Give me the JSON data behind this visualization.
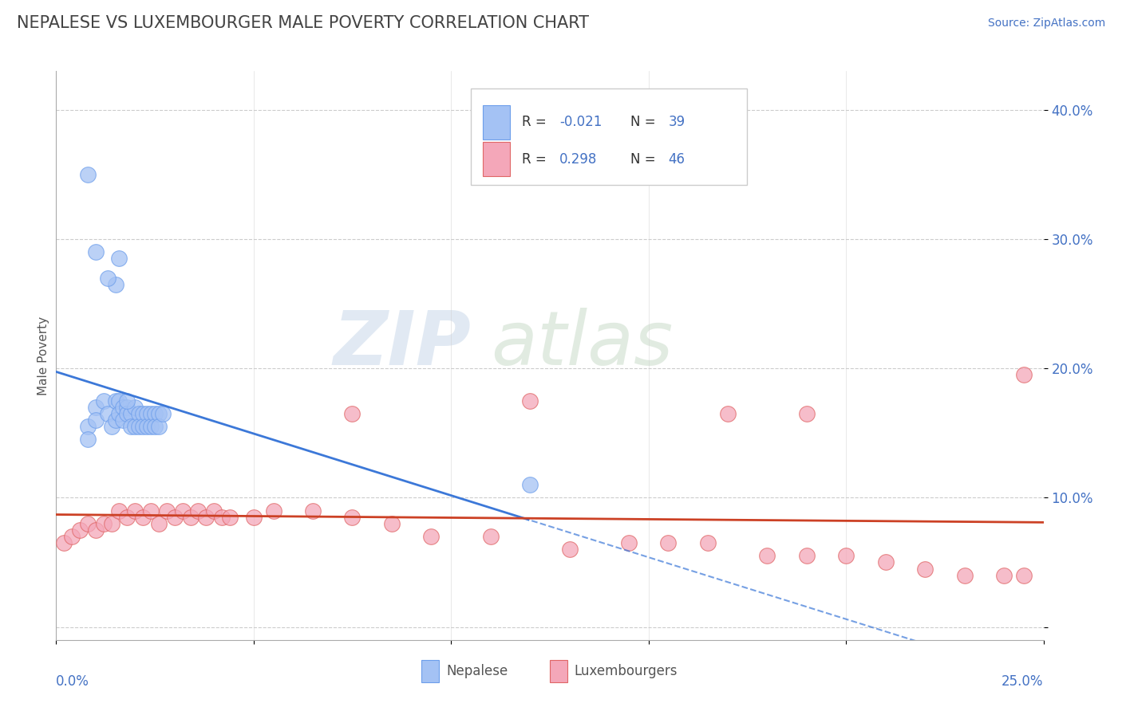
{
  "title": "NEPALESE VS LUXEMBOURGER MALE POVERTY CORRELATION CHART",
  "source": "Source: ZipAtlas.com",
  "ylabel": "Male Poverty",
  "xlim": [
    0.0,
    0.25
  ],
  "ylim": [
    -0.01,
    0.43
  ],
  "yticks": [
    0.0,
    0.1,
    0.2,
    0.3,
    0.4
  ],
  "ytick_labels": [
    "",
    "10.0%",
    "20.0%",
    "30.0%",
    "40.0%"
  ],
  "xtick_positions": [
    0.0,
    0.05,
    0.1,
    0.15,
    0.2,
    0.25
  ],
  "nepalese_R": -0.021,
  "nepalese_N": 39,
  "luxembourger_R": 0.298,
  "luxembourger_N": 46,
  "nepalese_color": "#a4c2f4",
  "luxembourger_color": "#f4a7b9",
  "nepalese_edge_color": "#6d9eeb",
  "luxembourger_edge_color": "#e06666",
  "nepalese_line_color": "#3c78d8",
  "luxembourger_line_color": "#cc4125",
  "background_color": "#ffffff",
  "grid_color": "#cccccc",
  "title_color": "#434343",
  "axis_label_color": "#4472c4",
  "nepalese_x": [
    0.008,
    0.008,
    0.01,
    0.01,
    0.012,
    0.013,
    0.014,
    0.015,
    0.015,
    0.016,
    0.016,
    0.017,
    0.017,
    0.018,
    0.018,
    0.019,
    0.019,
    0.02,
    0.02,
    0.021,
    0.021,
    0.022,
    0.022,
    0.023,
    0.023,
    0.024,
    0.024,
    0.025,
    0.025,
    0.026,
    0.026,
    0.027,
    0.015,
    0.016,
    0.12,
    0.008,
    0.01,
    0.013,
    0.018
  ],
  "nepalese_y": [
    0.155,
    0.145,
    0.17,
    0.16,
    0.175,
    0.165,
    0.155,
    0.175,
    0.16,
    0.175,
    0.165,
    0.17,
    0.16,
    0.17,
    0.165,
    0.165,
    0.155,
    0.17,
    0.155,
    0.165,
    0.155,
    0.165,
    0.155,
    0.165,
    0.155,
    0.165,
    0.155,
    0.165,
    0.155,
    0.165,
    0.155,
    0.165,
    0.265,
    0.285,
    0.11,
    0.35,
    0.29,
    0.27,
    0.175
  ],
  "luxembourger_x": [
    0.002,
    0.004,
    0.006,
    0.008,
    0.01,
    0.012,
    0.014,
    0.016,
    0.018,
    0.02,
    0.022,
    0.024,
    0.026,
    0.028,
    0.03,
    0.032,
    0.034,
    0.036,
    0.038,
    0.04,
    0.042,
    0.044,
    0.05,
    0.055,
    0.065,
    0.075,
    0.085,
    0.095,
    0.11,
    0.12,
    0.13,
    0.145,
    0.155,
    0.165,
    0.18,
    0.19,
    0.2,
    0.21,
    0.22,
    0.23,
    0.24,
    0.245,
    0.19,
    0.245,
    0.17,
    0.075
  ],
  "luxembourger_y": [
    0.065,
    0.07,
    0.075,
    0.08,
    0.075,
    0.08,
    0.08,
    0.09,
    0.085,
    0.09,
    0.085,
    0.09,
    0.08,
    0.09,
    0.085,
    0.09,
    0.085,
    0.09,
    0.085,
    0.09,
    0.085,
    0.085,
    0.085,
    0.09,
    0.09,
    0.085,
    0.08,
    0.07,
    0.07,
    0.175,
    0.06,
    0.065,
    0.065,
    0.065,
    0.055,
    0.055,
    0.055,
    0.05,
    0.045,
    0.04,
    0.04,
    0.04,
    0.165,
    0.195,
    0.165,
    0.165
  ],
  "watermark_zip_color": "#c0cfe8",
  "watermark_atlas_color": "#c8d8c8"
}
